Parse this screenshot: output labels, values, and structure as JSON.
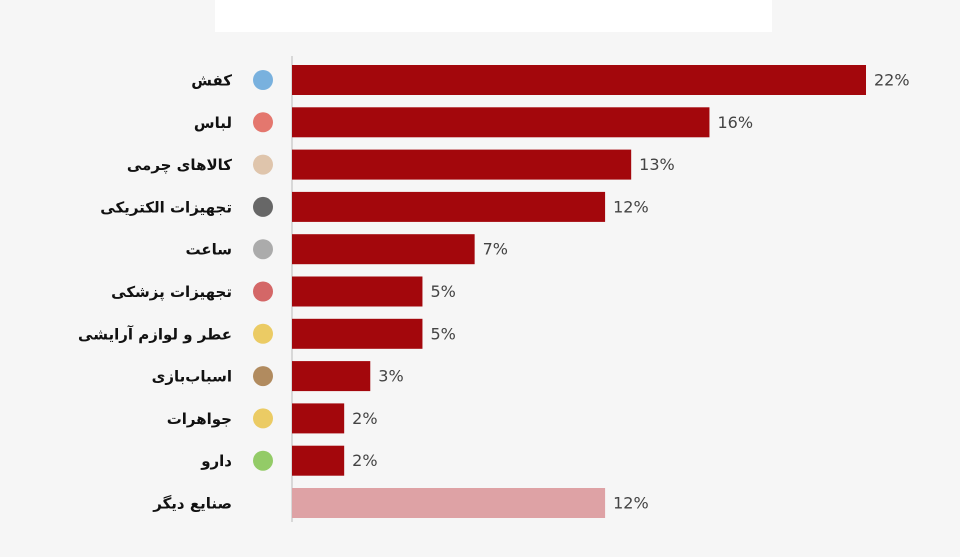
{
  "chart_data": {
    "type": "bar",
    "orientation": "horizontal",
    "categories": [
      "کفش",
      "لباس",
      "کالاهای چرمی",
      "تجهیزات الکتریکی",
      "ساعت",
      "تجهیزات پزشکی",
      "عطر و لوازم آرایشی",
      "اسباب‌بازی",
      "جواهرات",
      "دارو",
      "صنایع دیگر"
    ],
    "values": [
      22,
      16,
      13,
      12,
      7,
      5,
      5,
      3,
      2,
      2,
      12
    ],
    "value_labels": [
      "22%",
      "16%",
      "13%",
      "12%",
      "7%",
      "5%",
      "5%",
      "3%",
      "2%",
      "2%",
      "12%"
    ],
    "colors": [
      "#a3070c",
      "#a3070c",
      "#a3070c",
      "#a3070c",
      "#a3070c",
      "#a3070c",
      "#a3070c",
      "#a3070c",
      "#a3070c",
      "#a3070c",
      "#dea2a5"
    ],
    "xlim": [
      0,
      22
    ]
  }
}
